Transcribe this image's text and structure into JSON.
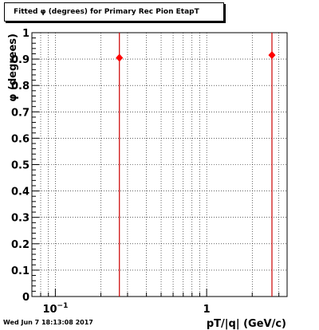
{
  "title": "Fitted φ (degrees) for Primary Rec Pion EtapT",
  "footer_timestamp": "Wed Jun  7 18:13:08 2017",
  "chart_data": {
    "type": "scatter",
    "title": "Fitted φ (degrees) for Primary Rec Pion EtapT",
    "xlabel": "pT/|q| (GeV/c)",
    "ylabel": "φ (degrees)",
    "x_scale": "log",
    "xlim": [
      0.07,
      3.4
    ],
    "ylim": [
      0,
      1
    ],
    "grid": true,
    "x_tick_labels": [
      {
        "value": 0.1,
        "base": "10",
        "exp": "−1"
      },
      {
        "value": 1,
        "base": "1",
        "exp": ""
      }
    ],
    "y_tick_labels": [
      "0",
      "0.1",
      "0.2",
      "0.3",
      "0.4",
      "0.5",
      "0.6",
      "0.7",
      "0.8",
      "0.9",
      "1"
    ],
    "points": [
      {
        "x": 0.265,
        "y": 0.905
      },
      {
        "x": 2.7,
        "y": 0.915
      }
    ],
    "marker_color": "#ff0000",
    "line_color": "#cc0000"
  }
}
